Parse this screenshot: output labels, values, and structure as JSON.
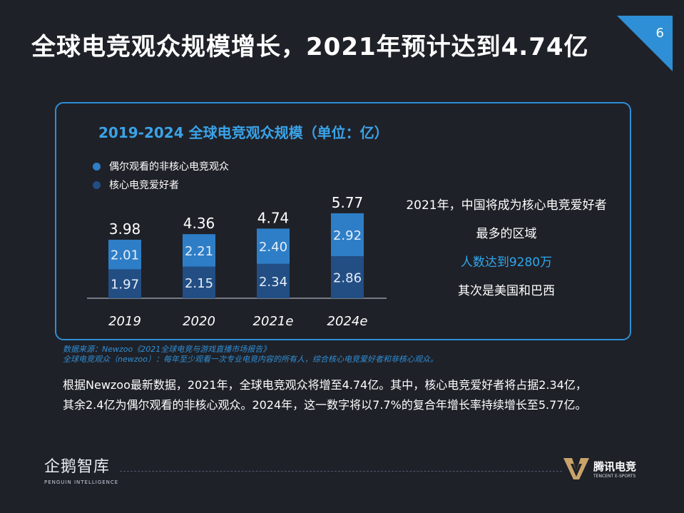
{
  "page": {
    "title": "全球电竞观众规模增长，2021年预计达到4.74亿",
    "number": "6"
  },
  "colors": {
    "background": "#1f2128",
    "accent": "#2e8fd6",
    "casual_bar": "#2e7ec7",
    "core_bar": "#224e84"
  },
  "legend": {
    "items": [
      "偶尔观看的非核心电竞观众",
      "核心电竞爱好者"
    ]
  },
  "chart_data": {
    "type": "bar",
    "stacked": true,
    "title": "2019-2024 全球电竞观众规模（单位：亿）",
    "categories": [
      "2019",
      "2020",
      "2021e",
      "2024e"
    ],
    "series": [
      {
        "name": "核心电竞爱好者",
        "values": [
          1.97,
          2.15,
          2.34,
          2.86
        ]
      },
      {
        "name": "偶尔观看的非核心电竞观众",
        "values": [
          2.01,
          2.21,
          2.4,
          2.92
        ]
      }
    ],
    "totals": [
      3.98,
      4.36,
      4.74,
      5.77
    ],
    "ylim": [
      0,
      6
    ],
    "xlabel": "",
    "ylabel": "",
    "grid": false,
    "legend_position": "top-left"
  },
  "callout": {
    "line1": "2021年，中国将成为核心电竞爱好者",
    "line2": "最多的区域",
    "highlight": "人数达到9280万",
    "line4": "其次是美国和巴西"
  },
  "source": {
    "line1": "数据来源：Newzoo《2021全球电竞与游戏直播市场报告》",
    "line2": "全球电竞观众（newzoo）：每年至少观看一次专业电竞内容的所有人，综合核心电竞爱好者和非核心观众。"
  },
  "summary": {
    "line1": "根据Newzoo最新数据，2021年，全球电竞观众将增至4.74亿。其中，核心电竞爱好者将占据2.34亿，",
    "line2": "其余2.4亿为偶尔观看的非核心观众。2024年，这一数字将以7.7%的复合年增长率持续增长至5.77亿。"
  },
  "logos": {
    "left_main": "企鹅智库",
    "left_sub": "PENGUIN INTELLIGENCE",
    "right_main": "腾讯电竞",
    "right_sub": "TENCENT E-SPORTS"
  }
}
